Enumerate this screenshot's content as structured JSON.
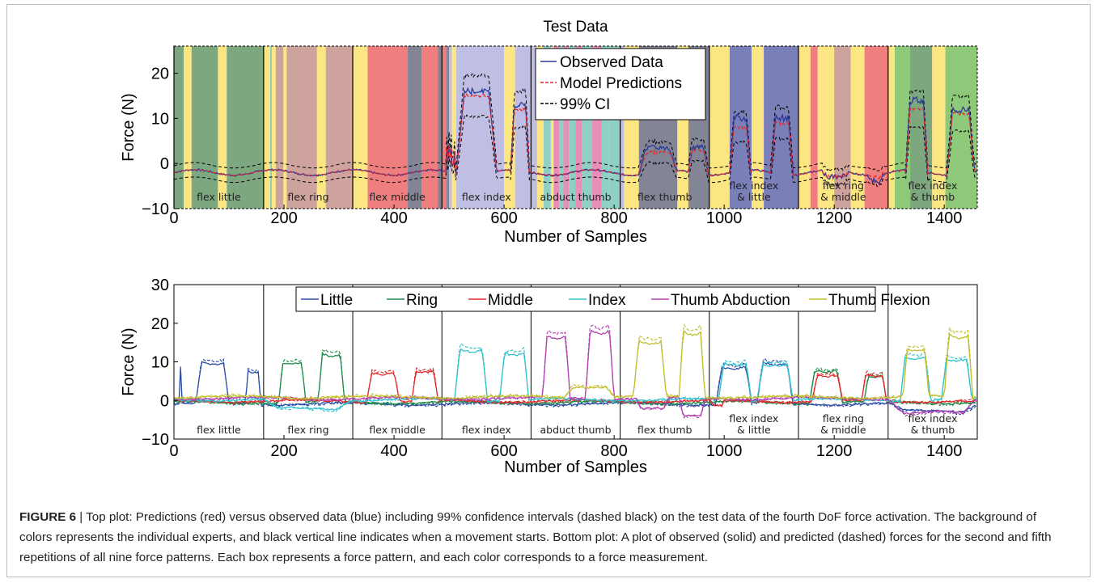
{
  "figure": {
    "caption_label": "FIGURE 6",
    "caption_sep": " | ",
    "caption_text": "Top plot: Predictions (red) versus observed data (blue) including 99% confidence intervals (dashed black) on the test data of the fourth DoF force activation. The background of colors represents the individual experts, and black vertical line indicates when a movement starts. Bottom plot: A plot of observed (solid) and predicted (dashed) forces for the second and fifth repetitions of all nine force patterns. Each box represents a force pattern, and each color corresponds to a force measurement."
  },
  "chart_data": [
    {
      "type": "line",
      "title": "Test Data",
      "xlabel": "Number of Samples",
      "ylabel": "Force (N)",
      "xlim": [
        0,
        1460
      ],
      "ylim": [
        -10,
        26
      ],
      "xticks": [
        0,
        200,
        400,
        600,
        800,
        1000,
        1200,
        1400
      ],
      "yticks": [
        -10,
        0,
        10,
        20
      ],
      "movement_starts": [
        0,
        163,
        325,
        487,
        649,
        811,
        973,
        1135,
        1298
      ],
      "segment_labels": [
        "flex little",
        "flex ring",
        "flex middle",
        "flex index",
        "abduct thumb",
        "flex thumb",
        "flex index\n& little",
        "flex ring\n& middle",
        "flex index\n& thumb"
      ],
      "legend": {
        "position": "top-center",
        "entries": [
          "Observed Data",
          "Model Predictions",
          "99% CI"
        ]
      },
      "series_styles": [
        {
          "name": "Observed Data",
          "color": "#2b3a9a",
          "dash": "solid"
        },
        {
          "name": "Model Predictions",
          "color": "#e0292e",
          "dash": "dashed"
        },
        {
          "name": "99% CI",
          "color": "#000000",
          "dash": "dashed"
        }
      ],
      "expert_colors": {
        "yellow": "#fbe682",
        "green": "#7da77f",
        "rose": "#cea39e",
        "red": "#ef7f7f",
        "slate": "#838596",
        "lavender": "#c0bee2",
        "pink": "#e88fb8",
        "teal": "#8fcfc4",
        "navy": "#7b7fb8",
        "lime": "#8ec97a"
      },
      "backgrounds": [
        [
          0,
          18,
          "green"
        ],
        [
          18,
          32,
          "yellow"
        ],
        [
          32,
          80,
          "green"
        ],
        [
          80,
          96,
          "yellow"
        ],
        [
          96,
          163,
          "green"
        ],
        [
          163,
          175,
          "yellow"
        ],
        [
          175,
          178,
          "teal"
        ],
        [
          178,
          185,
          "yellow"
        ],
        [
          185,
          199,
          "rose"
        ],
        [
          199,
          205,
          "yellow"
        ],
        [
          205,
          260,
          "rose"
        ],
        [
          260,
          276,
          "yellow"
        ],
        [
          276,
          325,
          "rose"
        ],
        [
          325,
          352,
          "yellow"
        ],
        [
          352,
          425,
          "red"
        ],
        [
          425,
          450,
          "slate"
        ],
        [
          450,
          480,
          "red"
        ],
        [
          480,
          487,
          "slate"
        ],
        [
          487,
          495,
          "red"
        ],
        [
          495,
          500,
          "slate"
        ],
        [
          500,
          505,
          "lavender"
        ],
        [
          505,
          513,
          "yellow"
        ],
        [
          513,
          600,
          "lavender"
        ],
        [
          600,
          620,
          "yellow"
        ],
        [
          620,
          649,
          "lavender"
        ],
        [
          649,
          660,
          "lavender"
        ],
        [
          660,
          672,
          "yellow"
        ],
        [
          672,
          685,
          "teal"
        ],
        [
          685,
          690,
          "yellow"
        ],
        [
          690,
          700,
          "pink"
        ],
        [
          700,
          708,
          "teal"
        ],
        [
          708,
          718,
          "pink"
        ],
        [
          718,
          730,
          "teal"
        ],
        [
          730,
          742,
          "pink"
        ],
        [
          742,
          760,
          "teal"
        ],
        [
          760,
          777,
          "pink"
        ],
        [
          777,
          790,
          "teal"
        ],
        [
          790,
          811,
          "teal"
        ],
        [
          811,
          818,
          "lavender"
        ],
        [
          818,
          845,
          "yellow"
        ],
        [
          845,
          915,
          "slate"
        ],
        [
          915,
          935,
          "yellow"
        ],
        [
          935,
          973,
          "slate"
        ],
        [
          973,
          1010,
          "yellow"
        ],
        [
          1010,
          1050,
          "navy"
        ],
        [
          1050,
          1072,
          "yellow"
        ],
        [
          1072,
          1135,
          "navy"
        ],
        [
          1135,
          1157,
          "yellow"
        ],
        [
          1157,
          1170,
          "red"
        ],
        [
          1170,
          1200,
          "yellow"
        ],
        [
          1200,
          1230,
          "rose"
        ],
        [
          1230,
          1255,
          "yellow"
        ],
        [
          1255,
          1298,
          "red"
        ],
        [
          1298,
          1310,
          "yellow"
        ],
        [
          1310,
          1338,
          "lime"
        ],
        [
          1338,
          1378,
          "green"
        ],
        [
          1378,
          1402,
          "yellow"
        ],
        [
          1402,
          1460,
          "lime"
        ]
      ],
      "active_windows": [
        [
          500,
          513
        ],
        [
          513,
          587,
          16,
          15
        ],
        [
          612,
          646,
          13,
          12
        ],
        [
          845,
          915,
          3.5,
          2.5
        ],
        [
          935,
          970,
          3.5,
          3.0
        ],
        [
          1010,
          1048,
          10,
          8
        ],
        [
          1085,
          1125,
          10,
          9
        ],
        [
          1180,
          1225,
          -3,
          -3
        ],
        [
          1260,
          1290,
          -4,
          -3
        ],
        [
          1330,
          1370,
          14,
          12
        ],
        [
          1405,
          1455,
          12,
          11
        ]
      ],
      "baseline": -2,
      "ci_halfwidth": 1.5
    },
    {
      "type": "line",
      "title": "",
      "xlabel": "Number of Samples",
      "ylabel": "Force (N)",
      "xlim": [
        0,
        1460
      ],
      "ylim": [
        -10,
        30
      ],
      "xticks": [
        0,
        200,
        400,
        600,
        800,
        1000,
        1200,
        1400
      ],
      "yticks": [
        -10,
        0,
        10,
        20,
        30
      ],
      "movement_starts": [
        163,
        325,
        487,
        649,
        811,
        973,
        1135,
        1298
      ],
      "segment_labels": [
        "flex little",
        "flex ring",
        "flex middle",
        "flex index",
        "abduct thumb",
        "flex thumb",
        "flex index\n& little",
        "flex ring\n& middle",
        "flex index\n& thumb"
      ],
      "legend": {
        "position": "top-center",
        "entries": [
          "Little",
          "Ring",
          "Middle",
          "Index",
          "Thumb Abduction",
          "Thumb Flexion"
        ]
      },
      "series": [
        {
          "name": "Little",
          "color": "#2b4ba8",
          "pulses": [
            [
              10,
              15,
              10
            ],
            [
              40,
              100,
              11
            ],
            [
              130,
              158,
              9
            ],
            [
              985,
              1050,
              10
            ],
            [
              1060,
              1125,
              11
            ],
            [
              1300,
              1460,
              -2
            ]
          ]
        },
        {
          "name": "Ring",
          "color": "#1f8a4a",
          "pulses": [
            [
              190,
              240,
              11
            ],
            [
              262,
              310,
              13
            ],
            [
              1155,
              1215,
              9
            ],
            [
              1255,
              1295,
              7
            ]
          ]
        },
        {
          "name": "Middle",
          "color": "#e22a2a",
          "pulses": [
            [
              350,
              410,
              8
            ],
            [
              432,
              480,
              8
            ],
            [
              1160,
              1215,
              7
            ],
            [
              1250,
              1295,
              7
            ],
            [
              975,
              1000,
              -1.5
            ]
          ]
        },
        {
          "name": "Index",
          "color": "#2ec2cc",
          "pulses": [
            [
              510,
              570,
              14
            ],
            [
              592,
              645,
              13
            ],
            [
              990,
              1050,
              10
            ],
            [
              1060,
              1125,
              10
            ],
            [
              1320,
              1375,
              12
            ],
            [
              1395,
              1450,
              11
            ],
            [
              163,
              320,
              -2.5
            ]
          ]
        },
        {
          "name": "Thumb Abduction",
          "color": "#b03fb0",
          "pulses": [
            [
              670,
              720,
              17
            ],
            [
              748,
              800,
              19
            ],
            [
              840,
              900,
              -3
            ],
            [
              918,
              965,
              -5
            ],
            [
              1300,
              1460,
              -4
            ]
          ]
        },
        {
          "name": "Thumb Flexion",
          "color": "#c2bf2e",
          "pulses": [
            [
              835,
              895,
              15
            ],
            [
              918,
              965,
              18
            ],
            [
              1325,
              1372,
              13
            ],
            [
              1400,
              1452,
              17
            ],
            [
              710,
              800,
              3
            ]
          ]
        }
      ],
      "baseline": 0
    }
  ]
}
